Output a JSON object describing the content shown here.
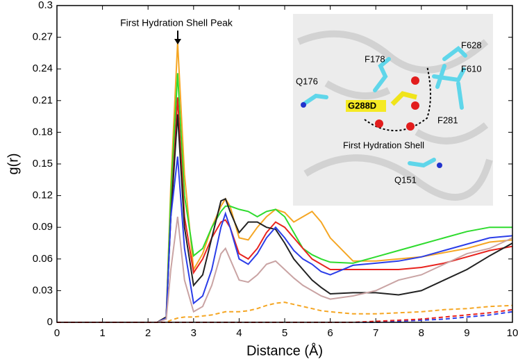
{
  "chart_data": {
    "type": "line",
    "x_label": "Distance (Å)",
    "y_label": "g(r)",
    "annotation": "First Hydration Shell Peak",
    "inset_labels": [
      "Q176",
      "F178",
      "F628",
      "F610",
      "G288D",
      "F281",
      "First Hydration Shell",
      "Q151"
    ],
    "xlim": [
      0,
      10
    ],
    "ylim": [
      0,
      0.3
    ],
    "xticks": [
      0,
      1,
      2,
      3,
      4,
      5,
      6,
      7,
      8,
      9,
      10
    ],
    "yticks": [
      0,
      0.03,
      0.06,
      0.09,
      0.12,
      0.15,
      0.18,
      0.21,
      0.24,
      0.27,
      0.3
    ],
    "x": [
      0,
      1,
      2,
      2.2,
      2.4,
      2.5,
      2.65,
      2.8,
      3,
      3.2,
      3.4,
      3.6,
      3.7,
      3.8,
      4,
      4.2,
      4.4,
      4.6,
      4.8,
      5,
      5.2,
      5.4,
      5.6,
      5.8,
      6,
      6.5,
      7,
      7.5,
      8,
      8.5,
      9,
      9.5,
      10
    ],
    "series": [
      {
        "color": "#f5a623",
        "dash": false,
        "values": [
          0,
          0,
          0,
          0,
          0.005,
          0.13,
          0.265,
          0.14,
          0.05,
          0.065,
          0.09,
          0.11,
          0.117,
          0.11,
          0.08,
          0.078,
          0.09,
          0.1,
          0.107,
          0.104,
          0.095,
          0.1,
          0.105,
          0.095,
          0.08,
          0.058,
          0.058,
          0.06,
          0.062,
          0.066,
          0.07,
          0.076,
          0.078
        ]
      },
      {
        "color": "#2edb2e",
        "dash": false,
        "values": [
          0,
          0,
          0,
          0,
          0.005,
          0.12,
          0.236,
          0.12,
          0.063,
          0.07,
          0.09,
          0.105,
          0.11,
          0.11,
          0.107,
          0.105,
          0.1,
          0.105,
          0.107,
          0.1,
          0.085,
          0.07,
          0.064,
          0.06,
          0.057,
          0.056,
          0.062,
          0.068,
          0.074,
          0.08,
          0.086,
          0.09,
          0.09
        ]
      },
      {
        "color": "#e8231e",
        "dash": false,
        "values": [
          0,
          0,
          0,
          0,
          0.005,
          0.1,
          0.213,
          0.1,
          0.047,
          0.06,
          0.08,
          0.095,
          0.097,
          0.09,
          0.065,
          0.06,
          0.07,
          0.085,
          0.095,
          0.09,
          0.08,
          0.07,
          0.06,
          0.055,
          0.05,
          0.05,
          0.05,
          0.05,
          0.052,
          0.056,
          0.062,
          0.068,
          0.072
        ]
      },
      {
        "color": "#222222",
        "dash": false,
        "values": [
          0,
          0,
          0,
          0,
          0.005,
          0.1,
          0.197,
          0.09,
          0.035,
          0.045,
          0.08,
          0.115,
          0.117,
          0.105,
          0.085,
          0.095,
          0.095,
          0.09,
          0.088,
          0.075,
          0.06,
          0.05,
          0.04,
          0.033,
          0.027,
          0.028,
          0.028,
          0.026,
          0.03,
          0.04,
          0.05,
          0.063,
          0.075
        ]
      },
      {
        "color": "#2b3de8",
        "dash": false,
        "values": [
          0,
          0,
          0,
          0,
          0.004,
          0.1,
          0.157,
          0.07,
          0.018,
          0.025,
          0.05,
          0.09,
          0.103,
          0.09,
          0.06,
          0.055,
          0.065,
          0.08,
          0.09,
          0.08,
          0.068,
          0.06,
          0.055,
          0.048,
          0.045,
          0.054,
          0.056,
          0.058,
          0.062,
          0.068,
          0.074,
          0.08,
          0.082
        ]
      },
      {
        "color": "#c9a3a3",
        "dash": false,
        "values": [
          0,
          0,
          0,
          0,
          0.003,
          0.05,
          0.1,
          0.04,
          0.01,
          0.015,
          0.035,
          0.065,
          0.07,
          0.06,
          0.04,
          0.038,
          0.045,
          0.055,
          0.058,
          0.05,
          0.042,
          0.035,
          0.03,
          0.025,
          0.022,
          0.025,
          0.03,
          0.04,
          0.045,
          0.055,
          0.065,
          0.07,
          0.08
        ]
      },
      {
        "color": "#f5a623",
        "dash": true,
        "values": [
          0,
          0,
          0,
          0,
          0,
          0.002,
          0.004,
          0.005,
          0.005,
          0.006,
          0.007,
          0.009,
          0.01,
          0.01,
          0.01,
          0.011,
          0.013,
          0.016,
          0.018,
          0.019,
          0.017,
          0.015,
          0.013,
          0.011,
          0.01,
          0.008,
          0.008,
          0.009,
          0.01,
          0.012,
          0.013,
          0.015,
          0.016
        ]
      },
      {
        "color": "#2b3de8",
        "dash": true,
        "values": [
          0,
          0,
          0,
          0,
          0,
          0,
          0,
          0,
          0,
          0,
          0,
          0,
          0,
          0,
          0,
          0,
          0,
          0,
          0,
          0,
          0,
          0,
          0,
          0,
          0,
          0,
          0,
          0.001,
          0.002,
          0.003,
          0.005,
          0.007,
          0.01
        ]
      },
      {
        "color": "#e8231e",
        "dash": true,
        "values": [
          0,
          0,
          0,
          0,
          0,
          0,
          0,
          0,
          0,
          0,
          0,
          0,
          0,
          0,
          0,
          0,
          0,
          0,
          0,
          0,
          0,
          0,
          0,
          0,
          0,
          0,
          0.001,
          0.002,
          0.003,
          0.005,
          0.007,
          0.009,
          0.012
        ]
      }
    ]
  }
}
